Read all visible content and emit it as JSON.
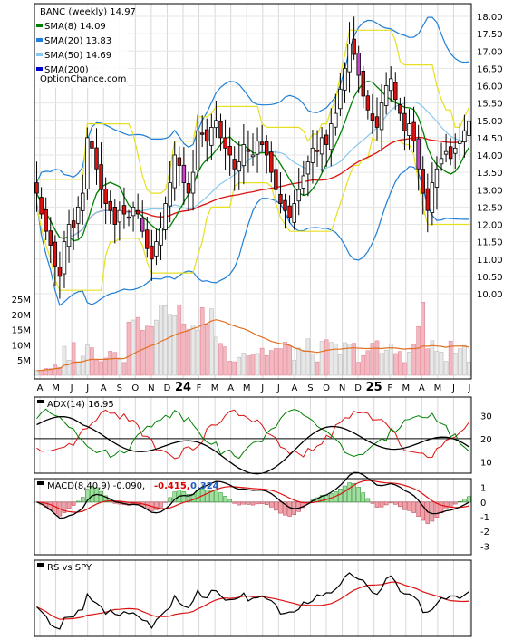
{
  "chart_data": {
    "type": "line",
    "title": "BANC (weekly) 14.97",
    "x_labels": [
      "A",
      "M",
      "J",
      "J",
      "A",
      "S",
      "O",
      "N",
      "D",
      "24",
      "F",
      "M",
      "A",
      "M",
      "J",
      "J",
      "A",
      "S",
      "O",
      "N",
      "D",
      "25",
      "F",
      "M",
      "A",
      "M",
      "J",
      "J"
    ],
    "price": {
      "ylim": [
        10.0,
        18.0
      ],
      "ticks": [
        "10.00",
        "10.50",
        "11.00",
        "11.50",
        "12.00",
        "12.50",
        "13.00",
        "13.50",
        "14.00",
        "14.50",
        "15.00",
        "15.50",
        "16.00",
        "16.50",
        "17.00",
        "17.50",
        "18.00"
      ],
      "legend": [
        {
          "label": "BANC (weekly) 14.97",
          "color": "#000000"
        },
        {
          "label": "SMA(8) 14.09",
          "color": "#008000"
        },
        {
          "label": "SMA(20) 13.83",
          "color": "#1e7fd6"
        },
        {
          "label": "SMA(50) 14.69",
          "color": "#88c8ee"
        },
        {
          "label": "SMA(200)",
          "color": "#0000cc"
        }
      ],
      "watermark": "OptionChance.com",
      "close": [
        12.9,
        12.3,
        11.8,
        11.4,
        10.8,
        10.5,
        11.5,
        12.0,
        11.9,
        12.5,
        12.9,
        14.5,
        14.2,
        13.6,
        13.0,
        12.6,
        12.4,
        12.0,
        12.4,
        12.3,
        12.2,
        12.5,
        12.3,
        11.8,
        11.3,
        11.0,
        11.5,
        11.9,
        12.6,
        13.2,
        14.0,
        13.7,
        13.2,
        12.9,
        13.5,
        14.7,
        14.6,
        14.4,
        14.8,
        15.0,
        14.5,
        14.2,
        14.0,
        13.6,
        13.8,
        14.3,
        14.1,
        14.0,
        14.4,
        14.3,
        14.0,
        13.5,
        13.0,
        12.6,
        12.4,
        12.2,
        12.6,
        13.0,
        13.4,
        13.8,
        14.2,
        14.1,
        14.5,
        14.3,
        14.9,
        15.2,
        15.9,
        16.5,
        17.2,
        16.9,
        16.3,
        15.7,
        15.3,
        15.0,
        14.8,
        15.5,
        16.0,
        16.2,
        15.6,
        15.2,
        14.7,
        14.9,
        14.4,
        13.6,
        12.9,
        12.4,
        13.2,
        13.6,
        13.9,
        14.1,
        13.9,
        14.2,
        14.4,
        14.7,
        14.97
      ],
      "sma8_label": "SMA(8) 14.09",
      "sma20_label": "SMA(20) 13.83",
      "sma50_label": "SMA(50) 14.69",
      "sma200_label": "SMA(200)"
    },
    "volume": {
      "ticks": [
        "25M",
        "20M",
        "15M",
        "10M",
        "5M"
      ],
      "max": 25
    },
    "adx": {
      "label": "ADX(14) 16.95",
      "ticks": [
        "30",
        "20",
        "10"
      ],
      "ylim": [
        5,
        38
      ]
    },
    "macd": {
      "label": "MACD(8,40,9) -0.090,",
      "v1": "-0.415,",
      "v2": "0.324",
      "v1_color": "#dd0000",
      "v2_color": "#1f5fbf",
      "ticks": [
        "1",
        "0",
        "-1",
        "-2",
        "-3"
      ],
      "ylim": [
        -3.6,
        1.6
      ]
    },
    "rs": {
      "label": "RS vs SPY"
    }
  }
}
